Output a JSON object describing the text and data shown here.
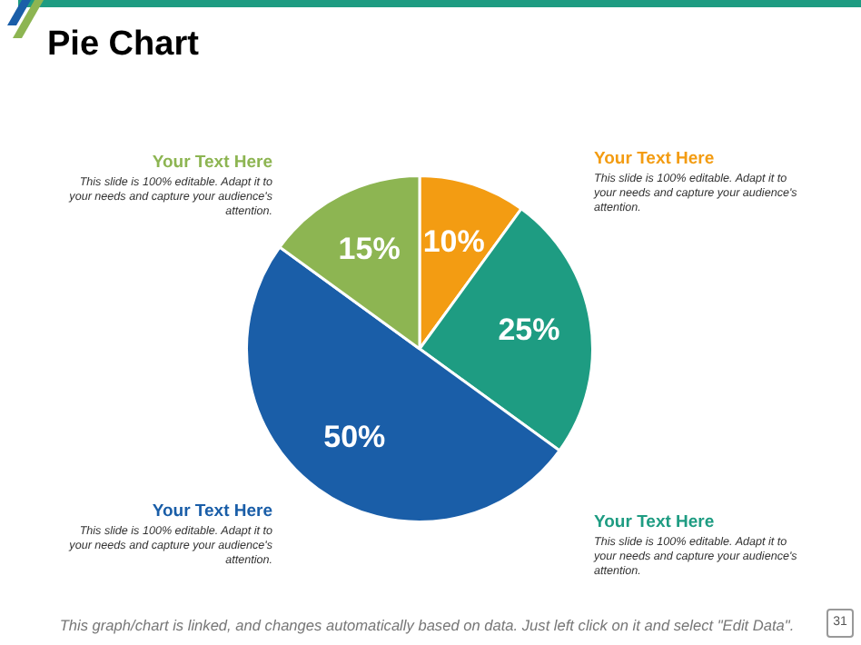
{
  "chart_data": {
    "type": "pie",
    "title": "Pie Chart",
    "categories": [
      null,
      null,
      null,
      null
    ],
    "values": [
      10,
      25,
      50,
      15
    ],
    "colors": [
      "#f39c12",
      "#1e9c82",
      "#1a5ea8",
      "#8db552"
    ],
    "value_labels": [
      "10%",
      "25%",
      "50%",
      "15%"
    ],
    "legend": false,
    "annotations": [
      "Your Text Here",
      "This slide is 100% editable. Adapt it to your needs and capture your audience's attention.",
      "Your Text Here",
      "This slide is 100% editable. Adapt it to your needs and capture your audience's attention.",
      "Your Text Here",
      "This slide is 100% editable. Adapt it to your needs and capture your audience's attention.",
      "Your Text Here",
      "This slide is 100% editable. Adapt it to your needs and capture your audience's attention.",
      "This graph/chart is linked, and changes automatically based on data. Just left click on it and select \"Edit Data\".",
      "31"
    ]
  }
}
